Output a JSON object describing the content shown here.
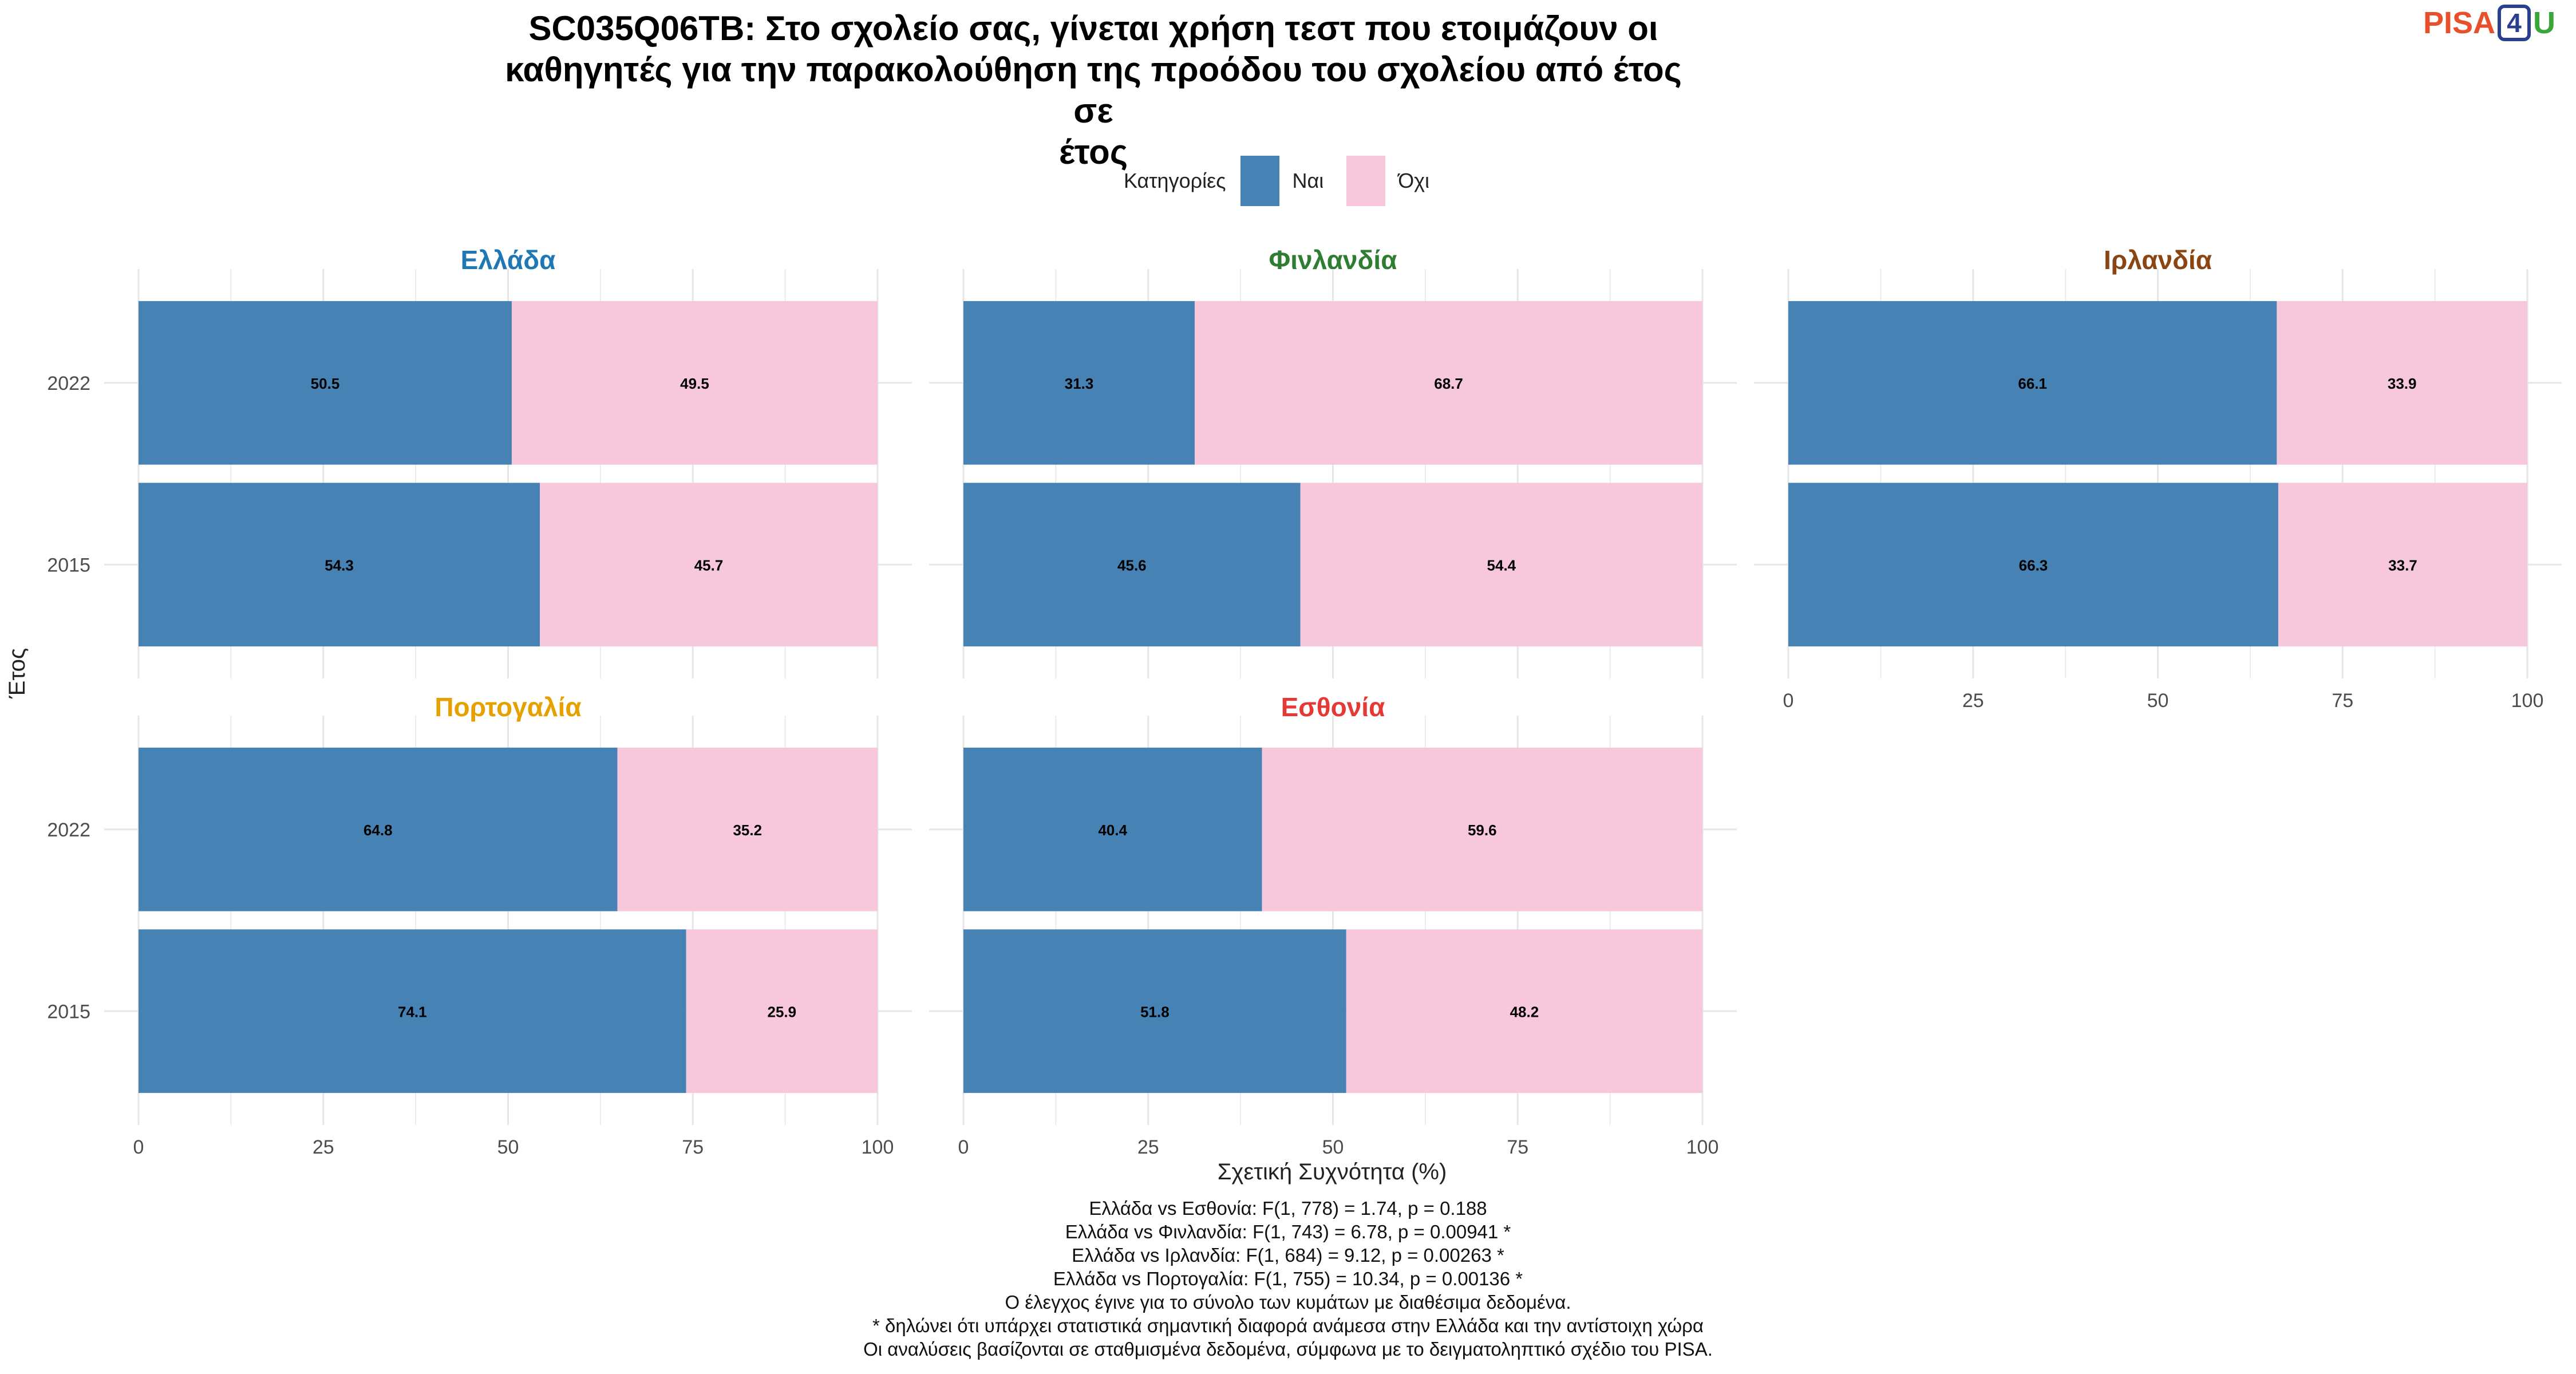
{
  "title_lines": [
    "SC035Q06TB: Στο σχολείο σας, γίνεται χρήση τεστ που ετοιμάζουν οι",
    "καθηγητές για την παρακολούθηση της προόδου του σχολείου από έτος σε",
    "έτος"
  ],
  "logo": {
    "left": "PISA",
    "mid": "4",
    "right": "U"
  },
  "legend": {
    "title": "Κατηγορίες",
    "items": [
      "Ναι",
      "Όχι"
    ]
  },
  "colors": {
    "yes": "#4682b4",
    "no": "#f7c8dc",
    "grid": "#e6e6e6",
    "axis_text": "#4d4d4d"
  },
  "footer_lines": [
    "Ελλάδα vs Εσθονία: F(1, 778) = 1.74, p = 0.188",
    "Ελλάδα vs Φινλανδία: F(1, 743) = 6.78, p = 0.00941 *",
    "Ελλάδα vs Ιρλανδία: F(1, 684) = 9.12, p = 0.00263 *",
    "Ελλάδα vs Πορτογαλία: F(1, 755) = 10.34, p = 0.00136 *",
    "Ο έλεγχος έγινε για το σύνολο των κυμάτων με διαθέσιμα δεδομένα.",
    "* δηλώνει ότι υπάρχει στατιστικά σημαντική διαφορά ανάμεσα στην Ελλάδα και την αντίστοιχη χώρα",
    "Οι αναλύσεις βασίζονται σε σταθμισμένα δεδομένα, σύμφωνα με το δειγματοληπτικό σχέδιο του PISA."
  ],
  "chart_data": {
    "type": "bar",
    "orientation": "horizontal",
    "stacked": true,
    "xlabel": "Σχετική Συχνότητα (%)",
    "ylabel": "Έτος",
    "xlim": [
      0,
      100
    ],
    "xticks": [
      0,
      25,
      50,
      75,
      100
    ],
    "categories": [
      "2015",
      "2022"
    ],
    "series_names": [
      "Ναι",
      "Όχι"
    ],
    "grid": true,
    "legend_position": "top",
    "facets": [
      {
        "name": "Ελλάδα",
        "color": "#1f77b4",
        "values": {
          "2022": [
            50.5,
            49.5
          ],
          "2015": [
            54.3,
            45.7
          ]
        }
      },
      {
        "name": "Φινλανδία",
        "color": "#2e7d32",
        "values": {
          "2022": [
            31.3,
            68.7
          ],
          "2015": [
            45.6,
            54.4
          ]
        }
      },
      {
        "name": "Ιρλανδία",
        "color": "#8b4513",
        "values": {
          "2022": [
            66.1,
            33.9
          ],
          "2015": [
            66.3,
            33.7
          ]
        }
      },
      {
        "name": "Πορτογαλία",
        "color": "#e6a000",
        "values": {
          "2022": [
            64.8,
            35.2
          ],
          "2015": [
            74.1,
            25.9
          ]
        }
      },
      {
        "name": "Εσθονία",
        "color": "#e53935",
        "values": {
          "2022": [
            40.4,
            59.6
          ],
          "2015": [
            51.8,
            48.2
          ]
        }
      }
    ]
  }
}
